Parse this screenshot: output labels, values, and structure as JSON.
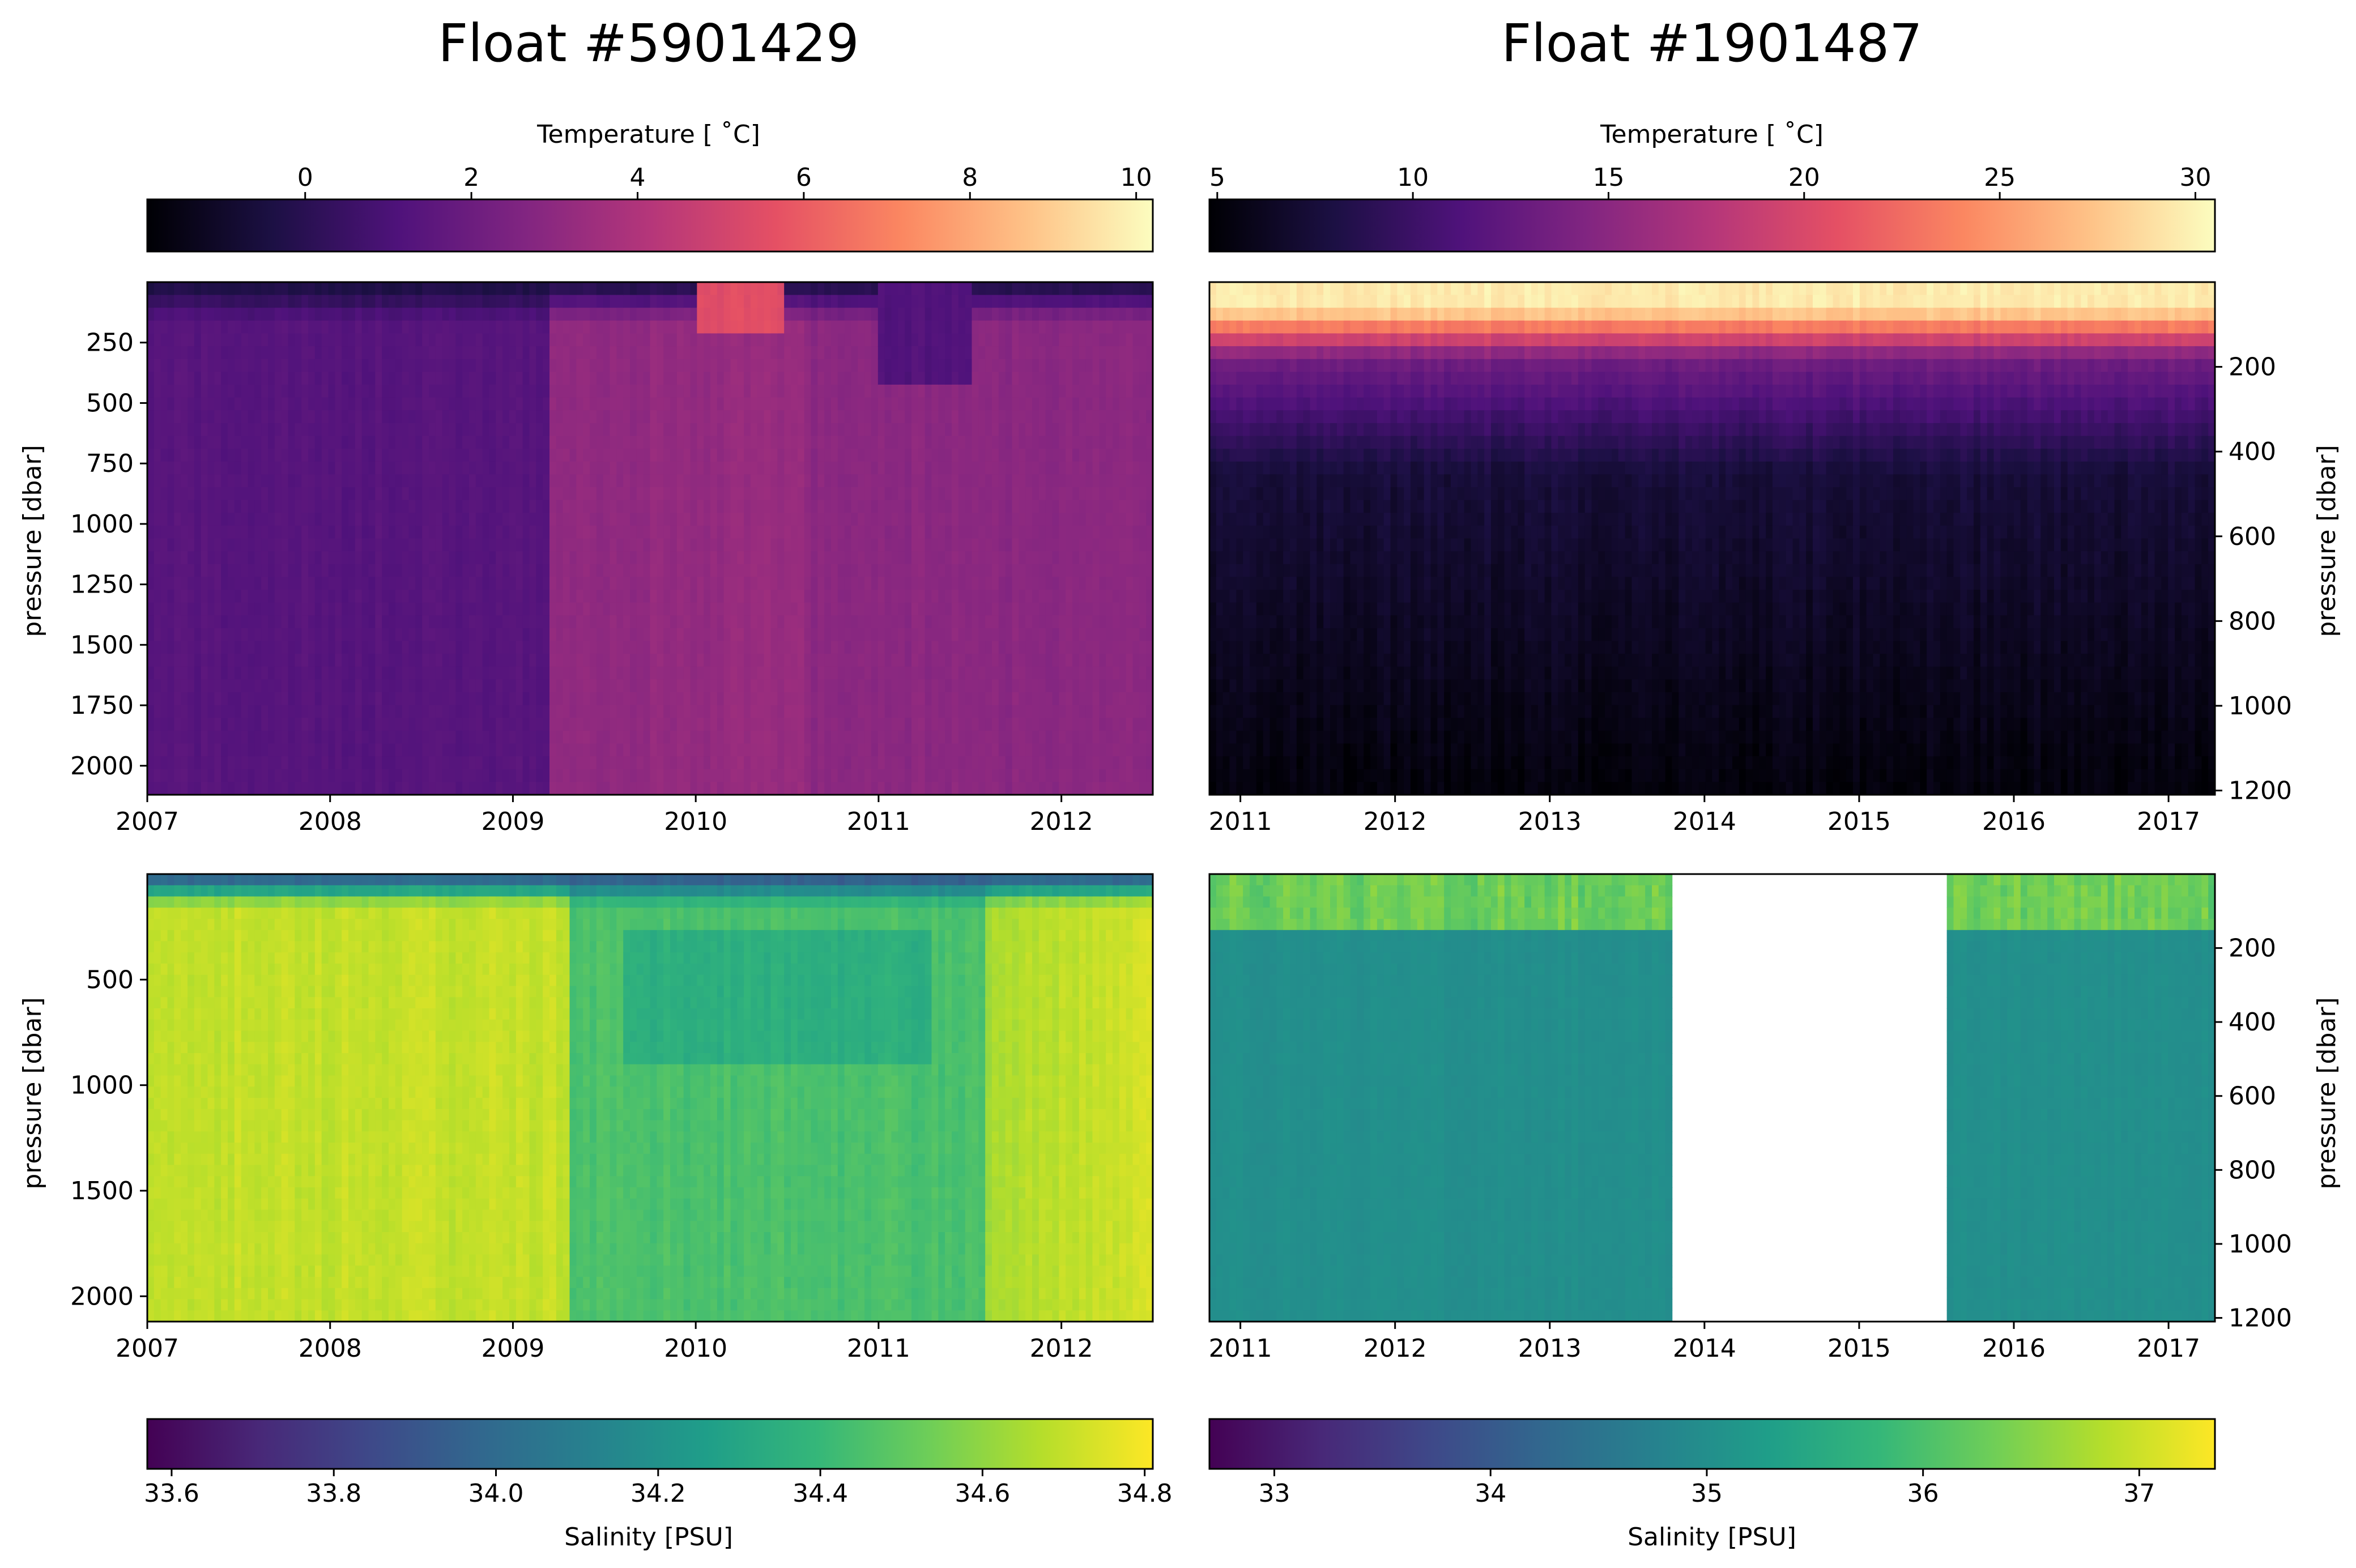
{
  "figure": {
    "titles": [
      "Float #5901429",
      "Float #1901487"
    ]
  },
  "colorbars": {
    "temp_left": {
      "label": "Temperature [$^\\circ$C]",
      "display_label": "Temperature [ ˚C]",
      "ticks": [
        "0",
        "2",
        "4",
        "6",
        "8",
        "10"
      ],
      "range": [
        -1.9,
        10.2
      ],
      "colormap": "magma"
    },
    "temp_right": {
      "label": "Temperature [$^\\circ$C]",
      "display_label": "Temperature [ ˚C]",
      "ticks": [
        "5",
        "10",
        "15",
        "20",
        "25",
        "30"
      ],
      "range": [
        4.8,
        30.5
      ],
      "colormap": "magma"
    },
    "sal_left": {
      "label": "Salinity [PSU]",
      "ticks": [
        "33.6",
        "33.8",
        "34.0",
        "34.2",
        "34.4",
        "34.6",
        "34.8"
      ],
      "range": [
        33.57,
        34.81
      ],
      "colormap": "viridis"
    },
    "sal_right": {
      "label": "Salinity [PSU]",
      "ticks": [
        "33",
        "34",
        "35",
        "36",
        "37"
      ],
      "range": [
        32.7,
        37.35
      ],
      "colormap": "viridis"
    }
  },
  "colors": {
    "magma": [
      "#000004",
      "#1c1044",
      "#4f127b",
      "#812581",
      "#b5367a",
      "#e55064",
      "#fb8761",
      "#fec287",
      "#fcfdbf"
    ],
    "viridis": [
      "#440154",
      "#482878",
      "#3e4989",
      "#31688e",
      "#26828e",
      "#1f9e89",
      "#35b779",
      "#6ece58",
      "#b5de2b",
      "#fde725"
    ]
  },
  "chart_data": [
    {
      "type": "heatmap",
      "title": "Float #5901429",
      "variable": "Temperature [$^\\circ$C]",
      "xlabel": "",
      "ylabel": "pressure [dbar]",
      "xticks": [
        "2007",
        "2008",
        "2009",
        "2010",
        "2011",
        "2012"
      ],
      "yticks": [
        "250",
        "500",
        "750",
        "1000",
        "1250",
        "1500",
        "1750",
        "2000"
      ],
      "xlim": [
        2007.0,
        2012.5
      ],
      "ylim": [
        2120,
        0
      ],
      "y_inverted": true,
      "typical_values": {
        "surface": -1.0,
        "upper": 1.2,
        "deep_2007": 1.3,
        "deep_2010": 3.2,
        "deep_2012": 2.9
      }
    },
    {
      "type": "heatmap",
      "title": "Float #1901487",
      "variable": "Temperature [$^\\circ$C]",
      "xlabel": "",
      "ylabel": "pressure [dbar]",
      "xticks": [
        "2011",
        "2012",
        "2013",
        "2014",
        "2015",
        "2016",
        "2017"
      ],
      "yticks": [
        "200",
        "400",
        "600",
        "800",
        "1000",
        "1200"
      ],
      "xlim": [
        2010.8,
        2017.3
      ],
      "ylim": [
        1210,
        0
      ],
      "y_inverted": true,
      "typical_values": {
        "surface": 29.5,
        "thermocline_100": 20.0,
        "mid_300": 10.0,
        "deep_1100": 5.2
      }
    },
    {
      "type": "heatmap",
      "title": "",
      "variable": "Salinity [PSU]",
      "xlabel": "",
      "ylabel": "pressure [dbar]",
      "xticks": [
        "2007",
        "2008",
        "2009",
        "2010",
        "2011",
        "2012"
      ],
      "yticks": [
        "500",
        "1000",
        "1500",
        "2000"
      ],
      "xlim": [
        2007.0,
        2012.5
      ],
      "ylim": [
        2120,
        0
      ],
      "y_inverted": true,
      "typical_values": {
        "surface": 33.9,
        "deep_2007": 34.68,
        "mid_2010": 34.35,
        "deep_2012": 34.75
      }
    },
    {
      "type": "heatmap",
      "title": "",
      "variable": "Salinity [PSU]",
      "xlabel": "",
      "ylabel": "pressure [dbar]",
      "xticks": [
        "2011",
        "2012",
        "2013",
        "2014",
        "2015",
        "2016",
        "2017"
      ],
      "yticks": [
        "200",
        "400",
        "600",
        "800",
        "1000",
        "1200"
      ],
      "xlim": [
        2010.8,
        2017.3
      ],
      "ylim": [
        1210,
        0
      ],
      "y_inverted": true,
      "data_gap": [
        2013.8,
        2015.55
      ],
      "typical_values": {
        "surface": 36.2,
        "upper_100": 36.6,
        "deep": 35.0
      }
    }
  ]
}
